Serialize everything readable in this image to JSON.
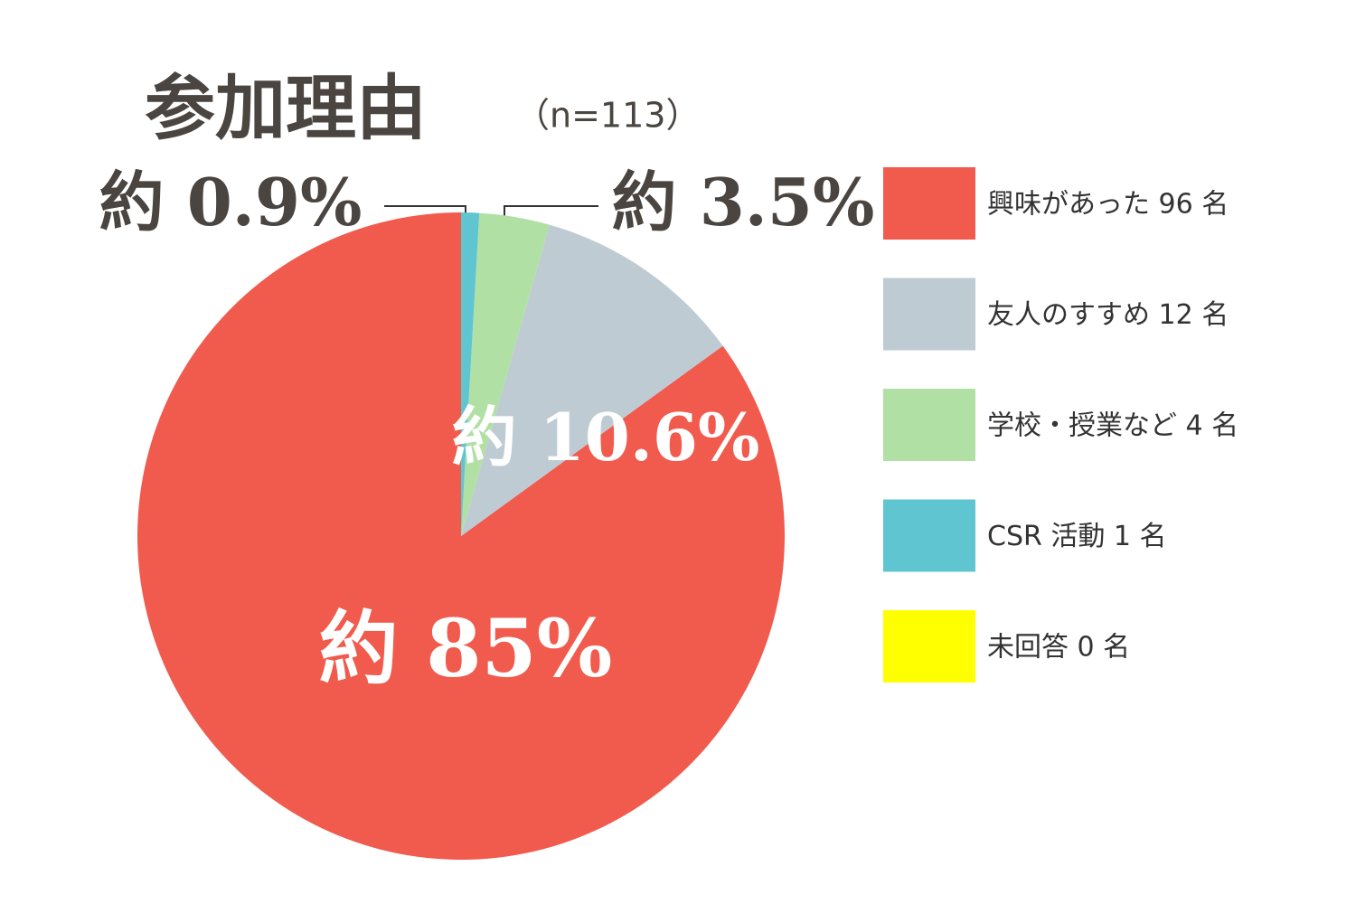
{
  "chart_data": {
    "type": "pie",
    "title": "参加理由",
    "subtitle": "（n=113）",
    "categories": [
      "興味があった 96 名",
      "友人のすすめ 12 名",
      "学校・授業など 4 名",
      "CSR 活動 1 名",
      "未回答 0 名"
    ],
    "values": [
      85,
      10.6,
      3.5,
      0.9,
      0
    ],
    "value_labels": [
      "約 85%",
      "約 10.6%",
      "約 3.5%",
      "約 0.9%",
      null
    ],
    "colors": [
      "#f15b4e",
      "#bfcbd3",
      "#b1e0a5",
      "#5fc6d1",
      "#ffff00"
    ],
    "direction": "counterclockwise",
    "legend": "right"
  }
}
